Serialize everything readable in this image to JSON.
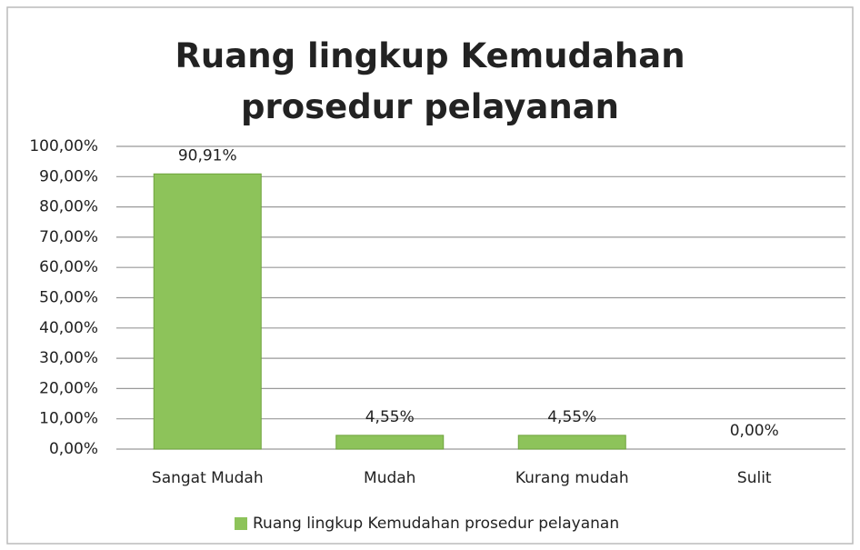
{
  "chart_data": {
    "type": "bar",
    "title": "Ruang lingkup Kemudahan prosedur pelayanan",
    "categories": [
      "Sangat Mudah",
      "Mudah",
      "Kurang mudah",
      "Sulit"
    ],
    "series": [
      {
        "name": "Ruang lingkup Kemudahan prosedur pelayanan",
        "color": "#8dc35a",
        "values": [
          90.91,
          4.55,
          4.55,
          0
        ],
        "value_labels": [
          "90,91%",
          "4,55%",
          "4,55%",
          "0,00%"
        ]
      }
    ],
    "ylim": [
      0,
      100
    ],
    "yticks": [
      {
        "value": 0,
        "label": "0,00%"
      },
      {
        "value": 10,
        "label": "10,00%"
      },
      {
        "value": 20,
        "label": "20,00%"
      },
      {
        "value": 30,
        "label": "30,00%"
      },
      {
        "value": 40,
        "label": "40,00%"
      },
      {
        "value": 50,
        "label": "50,00%"
      },
      {
        "value": 60,
        "label": "60,00%"
      },
      {
        "value": 70,
        "label": "70,00%"
      },
      {
        "value": 80,
        "label": "80,00%"
      },
      {
        "value": 90,
        "label": "90,00%"
      },
      {
        "value": 100,
        "label": "100,00%"
      }
    ],
    "grid": true,
    "legend": "bottom"
  }
}
